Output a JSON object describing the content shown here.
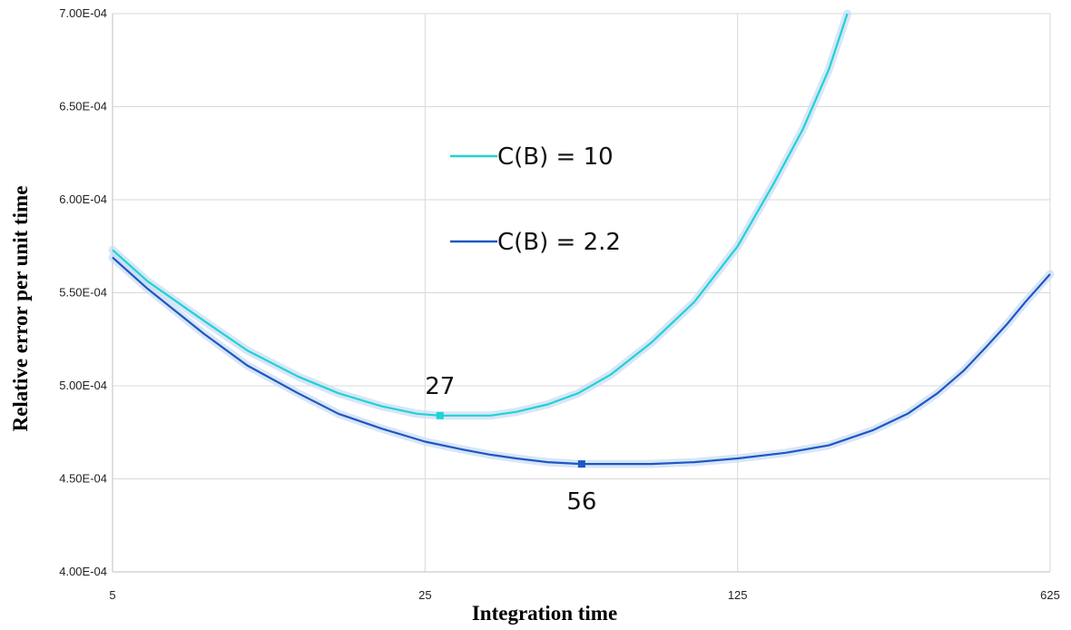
{
  "chart_data": {
    "type": "line",
    "title": "",
    "xlabel": "Integration time",
    "ylabel": "Relative error per unit time",
    "xscale": "log",
    "xlim": [
      5,
      625
    ],
    "ylim": [
      0.0004,
      0.0007
    ],
    "xticks": [
      5,
      25,
      125,
      625
    ],
    "xtick_labels": [
      "5",
      "25",
      "125",
      "625"
    ],
    "yticks": [
      0.0004,
      0.00045,
      0.0005,
      0.00055,
      0.0006,
      0.00065,
      0.0007
    ],
    "ytick_labels": [
      "4.00E-04",
      "4.50E-04",
      "5.00E-04",
      "5.50E-04",
      "6.00E-04",
      "6.50E-04",
      "7.00E-04"
    ],
    "grid": true,
    "legend_position": "upper-center",
    "series": [
      {
        "name": "C(B) = 10",
        "color": "#1fd3d3",
        "x": [
          5,
          6,
          8,
          10,
          13,
          16,
          20,
          24,
          27,
          30,
          35,
          40,
          47,
          55,
          65,
          80,
          100,
          125,
          150,
          175,
          200,
          220
        ],
        "y": [
          0.000573,
          0.000556,
          0.000535,
          0.000519,
          0.000505,
          0.000496,
          0.000489,
          0.000485,
          0.000484,
          0.000484,
          0.000484,
          0.000486,
          0.00049,
          0.000496,
          0.000506,
          0.000523,
          0.000545,
          0.000575,
          0.000608,
          0.000638,
          0.00067,
          0.0007
        ]
      },
      {
        "name": "C(B) = 2.2",
        "color": "#1f57c3",
        "x": [
          5,
          6,
          8,
          10,
          13,
          16,
          20,
          25,
          30,
          35,
          40,
          47,
          56,
          65,
          80,
          100,
          125,
          160,
          200,
          250,
          300,
          350,
          400,
          450,
          500,
          550,
          625
        ],
        "y": [
          0.000569,
          0.000552,
          0.000528,
          0.000511,
          0.000496,
          0.000485,
          0.000477,
          0.00047,
          0.000466,
          0.000463,
          0.000461,
          0.000459,
          0.000458,
          0.000458,
          0.000458,
          0.000459,
          0.000461,
          0.000464,
          0.000468,
          0.000476,
          0.000485,
          0.000496,
          0.000508,
          0.000521,
          0.000533,
          0.000545,
          0.00056
        ]
      }
    ],
    "annotations": [
      {
        "text": "27",
        "x": 27,
        "y": 0.000484,
        "series": 0
      },
      {
        "text": "56",
        "x": 56,
        "y": 0.000458,
        "series": 1
      }
    ]
  }
}
